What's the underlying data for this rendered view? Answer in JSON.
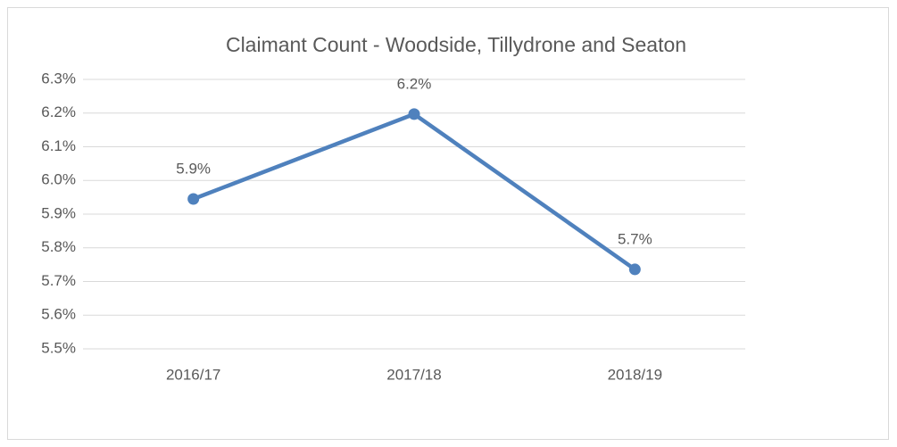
{
  "chart_data": {
    "type": "line",
    "title": "Claimant Count - Woodside, Tillydrone and Seaton",
    "categories": [
      "2016/17",
      "2017/18",
      "2018/19"
    ],
    "series": [
      {
        "name": "Claimant Count",
        "color": "#4f81bd",
        "values": [
          5.945,
          6.197,
          5.736
        ],
        "value_labels": [
          "5.9%",
          "6.2%",
          "5.7%"
        ]
      }
    ],
    "ylim": [
      5.5,
      6.3
    ],
    "yticks": [
      {
        "value": 5.5,
        "label": "5.5%"
      },
      {
        "value": 5.6,
        "label": "5.6%"
      },
      {
        "value": 5.7,
        "label": "5.7%"
      },
      {
        "value": 5.8,
        "label": "5.8%"
      },
      {
        "value": 5.9,
        "label": "5.9%"
      },
      {
        "value": 6.0,
        "label": "6.0%"
      },
      {
        "value": 6.1,
        "label": "6.1%"
      },
      {
        "value": 6.2,
        "label": "6.2%"
      },
      {
        "value": 6.3,
        "label": "6.3%"
      }
    ],
    "grid": true
  }
}
